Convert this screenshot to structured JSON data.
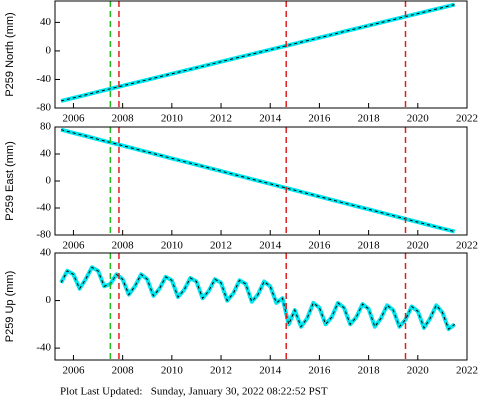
{
  "chart_data": [
    {
      "type": "line",
      "ylabel": "P259 North (mm)",
      "xlim": [
        2005.25,
        2022
      ],
      "xticks": [
        2006,
        2008,
        2010,
        2012,
        2014,
        2016,
        2018,
        2020,
        2022
      ],
      "ylim": [
        -80,
        70
      ],
      "yticks": [
        -80,
        -40,
        0,
        40
      ],
      "vlines": [
        {
          "x": 2007.5,
          "color": "#22bb22"
        },
        {
          "x": 2007.85,
          "color": "#e02020"
        },
        {
          "x": 2014.65,
          "color": "#e02020"
        },
        {
          "x": 2019.5,
          "color": "#e02020"
        }
      ],
      "x": [
        2005.5,
        2006,
        2006.5,
        2007,
        2007.5,
        2008,
        2008.5,
        2009,
        2009.5,
        2010,
        2010.5,
        2011,
        2011.5,
        2012,
        2012.5,
        2013,
        2013.5,
        2014,
        2014.5,
        2015,
        2015.5,
        2016,
        2016.5,
        2017,
        2017.5,
        2018,
        2018.5,
        2019,
        2019.5,
        2020,
        2020.5,
        2021,
        2021.5
      ],
      "series": [
        {
          "color": "#00e5ee",
          "values": [
            -70,
            -65.8,
            -61.6,
            -57.3,
            -53.1,
            -48.9,
            -44.7,
            -40.5,
            -36.2,
            -32,
            -27.8,
            -23.6,
            -19.4,
            -15.1,
            -10.9,
            -6.7,
            -2.5,
            1.7,
            6,
            10.2,
            14.4,
            18.6,
            22.8,
            27.1,
            31.3,
            35.5,
            39.7,
            43.9,
            48.2,
            52.4,
            56.6,
            60.8,
            65
          ]
        }
      ]
    },
    {
      "type": "line",
      "ylabel": "P259 East (mm)",
      "xlim": [
        2005.25,
        2022
      ],
      "xticks": [
        2006,
        2008,
        2010,
        2012,
        2014,
        2016,
        2018,
        2020,
        2022
      ],
      "ylim": [
        -80,
        80
      ],
      "yticks": [
        -80,
        -40,
        0,
        40,
        80
      ],
      "vlines": [
        {
          "x": 2007.5,
          "color": "#22bb22"
        },
        {
          "x": 2007.85,
          "color": "#e02020"
        },
        {
          "x": 2014.65,
          "color": "#e02020"
        },
        {
          "x": 2019.5,
          "color": "#e02020"
        }
      ],
      "x": [
        2005.5,
        2006,
        2006.5,
        2007,
        2007.5,
        2008,
        2008.5,
        2009,
        2009.5,
        2010,
        2010.5,
        2011,
        2011.5,
        2012,
        2012.5,
        2013,
        2013.5,
        2014,
        2014.5,
        2015,
        2015.5,
        2016,
        2016.5,
        2017,
        2017.5,
        2018,
        2018.5,
        2019,
        2019.5,
        2020,
        2020.5,
        2021,
        2021.5
      ],
      "series": [
        {
          "color": "#00e5ee",
          "values": [
            76,
            71.3,
            66.6,
            61.8,
            57.1,
            52.4,
            47.7,
            43,
            38.2,
            33.5,
            28.8,
            24.1,
            19.4,
            14.6,
            9.9,
            5.2,
            0.5,
            -4.2,
            -9,
            -13.7,
            -18.4,
            -23.1,
            -27.8,
            -32.6,
            -37.3,
            -42,
            -46.7,
            -51.4,
            -56.2,
            -60.9,
            -65.6,
            -70.3,
            -75
          ]
        }
      ]
    },
    {
      "type": "line",
      "ylabel": "P259 Up (mm)",
      "xlim": [
        2005.25,
        2022
      ],
      "xticks": [
        2006,
        2008,
        2010,
        2012,
        2014,
        2016,
        2018,
        2020,
        2022
      ],
      "ylim": [
        -50,
        40
      ],
      "yticks": [
        -40,
        0,
        40
      ],
      "vlines": [
        {
          "x": 2007.5,
          "color": "#22bb22"
        },
        {
          "x": 2007.85,
          "color": "#e02020"
        },
        {
          "x": 2014.65,
          "color": "#e02020"
        },
        {
          "x": 2019.5,
          "color": "#e02020"
        }
      ],
      "x": [
        2005.5,
        2005.75,
        2006,
        2006.25,
        2006.5,
        2006.75,
        2007,
        2007.25,
        2007.5,
        2007.75,
        2008,
        2008.25,
        2008.5,
        2008.75,
        2009,
        2009.25,
        2009.5,
        2009.75,
        2010,
        2010.25,
        2010.5,
        2010.75,
        2011,
        2011.25,
        2011.5,
        2011.75,
        2012,
        2012.25,
        2012.5,
        2012.75,
        2013,
        2013.25,
        2013.5,
        2013.75,
        2014,
        2014.25,
        2014.5,
        2014.75,
        2015,
        2015.25,
        2015.5,
        2015.75,
        2016,
        2016.25,
        2016.5,
        2016.75,
        2017,
        2017.25,
        2017.5,
        2017.75,
        2018,
        2018.25,
        2018.5,
        2018.75,
        2019,
        2019.25,
        2019.5,
        2019.75,
        2020,
        2020.25,
        2020.5,
        2020.75,
        2021,
        2021.25,
        2021.5
      ],
      "series": [
        {
          "color": "#00e5ee",
          "values": [
            15,
            25,
            22,
            10,
            18,
            28,
            25,
            12,
            14,
            22,
            18,
            5,
            12,
            22,
            18,
            4,
            10,
            20,
            17,
            3,
            9,
            19,
            16,
            2,
            8,
            18,
            15,
            0,
            6,
            17,
            14,
            -1,
            5,
            16,
            12,
            -2,
            2,
            -20,
            -8,
            -22,
            -15,
            -2,
            -6,
            -20,
            -14,
            -2,
            -6,
            -20,
            -14,
            -3,
            -7,
            -22,
            -15,
            -4,
            -8,
            -22,
            -16,
            -5,
            -9,
            -23,
            -15,
            -4,
            -10,
            -24,
            -20
          ]
        }
      ]
    }
  ],
  "footer": "Plot Last Updated:   Sunday, January 30, 2022 08:22:52 PST"
}
